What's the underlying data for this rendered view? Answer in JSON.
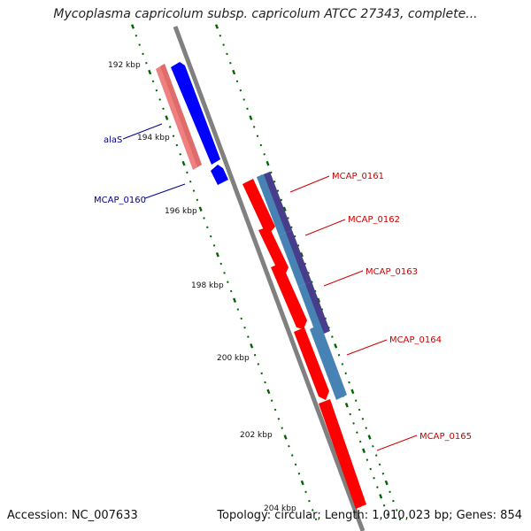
{
  "title": "Mycoplasma capricolum subsp. capricolum ATCC 27343, complete...",
  "footer": {
    "accession": "Accession: NC_007633",
    "summary": "Topology: circular; Length: 1,010,023 bp; Genes: 854"
  },
  "colors": {
    "backbone": "#808080",
    "forward_cds": "#0000ff",
    "forward_gene": "#f08080",
    "reverse_cds": "#ff0000",
    "reverse_blue": "#4682b4",
    "reverse_dark": "#483d8b",
    "ticks": "#006400",
    "label_forward": "#00008b",
    "label_reverse": "#cc0000"
  },
  "ticks": [
    {
      "label": "192 kbp"
    },
    {
      "label": "194 kbp"
    },
    {
      "label": "196 kbp"
    },
    {
      "label": "198 kbp"
    },
    {
      "label": "200 kbp"
    },
    {
      "label": "202 kbp"
    },
    {
      "label": "204 kbp"
    }
  ],
  "gene_labels": [
    {
      "name": "alaS",
      "strand": "forward"
    },
    {
      "name": "MCAP_0160",
      "strand": "forward"
    },
    {
      "name": "MCAP_0161",
      "strand": "reverse"
    },
    {
      "name": "MCAP_0162",
      "strand": "reverse"
    },
    {
      "name": "MCAP_0163",
      "strand": "reverse"
    },
    {
      "name": "MCAP_0164",
      "strand": "reverse"
    },
    {
      "name": "MCAP_0165",
      "strand": "reverse"
    }
  ]
}
